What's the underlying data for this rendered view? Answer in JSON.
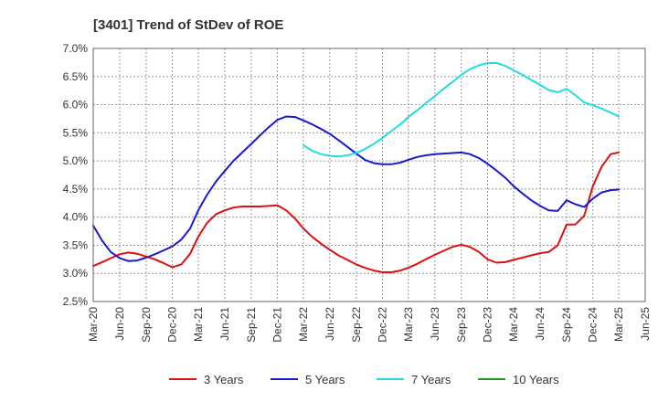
{
  "chart_data": {
    "type": "line",
    "title": "[3401]  Trend of StDev of ROE",
    "xlabel": "",
    "ylabel": "",
    "ylim": [
      2.5,
      7.0
    ],
    "y_ticks": [
      "2.5%",
      "3.0%",
      "3.5%",
      "4.0%",
      "4.5%",
      "5.0%",
      "5.5%",
      "6.0%",
      "6.5%",
      "7.0%"
    ],
    "x_ticks": [
      "Mar-20",
      "Jun-20",
      "Sep-20",
      "Dec-20",
      "Mar-21",
      "Jun-21",
      "Sep-21",
      "Dec-21",
      "Mar-22",
      "Jun-22",
      "Sep-22",
      "Dec-22",
      "Mar-23",
      "Jun-23",
      "Sep-23",
      "Dec-23",
      "Mar-24",
      "Jun-24",
      "Sep-24",
      "Dec-24",
      "Mar-25",
      "Jun-25"
    ],
    "grid": true,
    "legend_position": "bottom",
    "series": [
      {
        "name": "3 Years",
        "color": "#dd1111",
        "x": [
          "2020-03",
          "2020-04",
          "2020-05",
          "2020-06",
          "2020-07",
          "2020-08",
          "2020-09",
          "2020-10",
          "2020-11",
          "2020-12",
          "2021-01",
          "2021-02",
          "2021-03",
          "2021-04",
          "2021-05",
          "2021-06",
          "2021-07",
          "2021-08",
          "2021-09",
          "2021-10",
          "2021-11",
          "2021-12",
          "2022-01",
          "2022-02",
          "2022-03",
          "2022-04",
          "2022-05",
          "2022-06",
          "2022-07",
          "2022-08",
          "2022-09",
          "2022-10",
          "2022-11",
          "2022-12",
          "2023-01",
          "2023-02",
          "2023-03",
          "2023-04",
          "2023-05",
          "2023-06",
          "2023-07",
          "2023-08",
          "2023-09",
          "2023-10",
          "2023-11",
          "2023-12",
          "2024-01",
          "2024-02",
          "2024-03",
          "2024-04",
          "2024-05",
          "2024-06",
          "2024-07",
          "2024-08",
          "2024-09",
          "2024-10",
          "2024-11",
          "2024-12",
          "2025-01",
          "2025-02",
          "2025-03"
        ],
        "values": [
          3.13,
          3.2,
          3.27,
          3.34,
          3.37,
          3.35,
          3.3,
          3.25,
          3.18,
          3.11,
          3.16,
          3.35,
          3.65,
          3.9,
          4.05,
          4.12,
          4.17,
          4.19,
          4.19,
          4.19,
          4.2,
          4.21,
          4.12,
          3.97,
          3.8,
          3.65,
          3.53,
          3.42,
          3.32,
          3.24,
          3.16,
          3.1,
          3.05,
          3.02,
          3.02,
          3.05,
          3.1,
          3.17,
          3.25,
          3.33,
          3.4,
          3.47,
          3.51,
          3.47,
          3.38,
          3.25,
          3.19,
          3.2,
          3.24,
          3.28,
          3.32,
          3.36,
          3.38,
          3.5,
          3.87,
          3.87,
          4.02,
          4.55,
          4.9,
          5.12,
          5.15
        ]
      },
      {
        "name": "5 Years",
        "color": "#1a1acc",
        "x": [
          "2020-03",
          "2020-04",
          "2020-05",
          "2020-06",
          "2020-07",
          "2020-08",
          "2020-09",
          "2020-10",
          "2020-11",
          "2020-12",
          "2021-01",
          "2021-02",
          "2021-03",
          "2021-04",
          "2021-05",
          "2021-06",
          "2021-07",
          "2021-08",
          "2021-09",
          "2021-10",
          "2021-11",
          "2021-12",
          "2022-01",
          "2022-02",
          "2022-03",
          "2022-04",
          "2022-05",
          "2022-06",
          "2022-07",
          "2022-08",
          "2022-09",
          "2022-10",
          "2022-11",
          "2022-12",
          "2023-01",
          "2023-02",
          "2023-03",
          "2023-04",
          "2023-05",
          "2023-06",
          "2023-07",
          "2023-08",
          "2023-09",
          "2023-10",
          "2023-11",
          "2023-12",
          "2024-01",
          "2024-02",
          "2024-03",
          "2024-04",
          "2024-05",
          "2024-06",
          "2024-07",
          "2024-08",
          "2024-09",
          "2024-10",
          "2024-11",
          "2024-12",
          "2025-01",
          "2025-02",
          "2025-03"
        ],
        "values": [
          3.85,
          3.58,
          3.38,
          3.27,
          3.22,
          3.23,
          3.28,
          3.34,
          3.41,
          3.48,
          3.6,
          3.8,
          4.12,
          4.4,
          4.63,
          4.82,
          5.0,
          5.15,
          5.3,
          5.45,
          5.6,
          5.73,
          5.79,
          5.78,
          5.72,
          5.65,
          5.57,
          5.48,
          5.37,
          5.25,
          5.13,
          5.02,
          4.96,
          4.94,
          4.94,
          4.97,
          5.02,
          5.07,
          5.1,
          5.12,
          5.13,
          5.14,
          5.15,
          5.12,
          5.05,
          4.95,
          4.83,
          4.7,
          4.55,
          4.42,
          4.3,
          4.2,
          4.12,
          4.11,
          4.3,
          4.23,
          4.18,
          4.33,
          4.44,
          4.48,
          4.49
        ]
      },
      {
        "name": "7 Years",
        "color": "#22dddd",
        "x": [
          "2022-03",
          "2022-04",
          "2022-05",
          "2022-06",
          "2022-07",
          "2022-08",
          "2022-09",
          "2022-10",
          "2022-11",
          "2022-12",
          "2023-01",
          "2023-02",
          "2023-03",
          "2023-04",
          "2023-05",
          "2023-06",
          "2023-07",
          "2023-08",
          "2023-09",
          "2023-10",
          "2023-11",
          "2023-12",
          "2024-01",
          "2024-02",
          "2024-03",
          "2024-04",
          "2024-05",
          "2024-06",
          "2024-07",
          "2024-08",
          "2024-09",
          "2024-10",
          "2024-11",
          "2024-12",
          "2025-01",
          "2025-02",
          "2025-03"
        ],
        "values": [
          5.28,
          5.18,
          5.12,
          5.09,
          5.08,
          5.1,
          5.14,
          5.21,
          5.3,
          5.41,
          5.53,
          5.65,
          5.78,
          5.9,
          6.03,
          6.15,
          6.28,
          6.4,
          6.53,
          6.63,
          6.7,
          6.74,
          6.74,
          6.69,
          6.61,
          6.53,
          6.44,
          6.35,
          6.26,
          6.22,
          6.28,
          6.17,
          6.04,
          5.99,
          5.93,
          5.86,
          5.79
        ]
      },
      {
        "name": "10 Years",
        "color": "#229922",
        "x": [],
        "values": []
      }
    ]
  }
}
